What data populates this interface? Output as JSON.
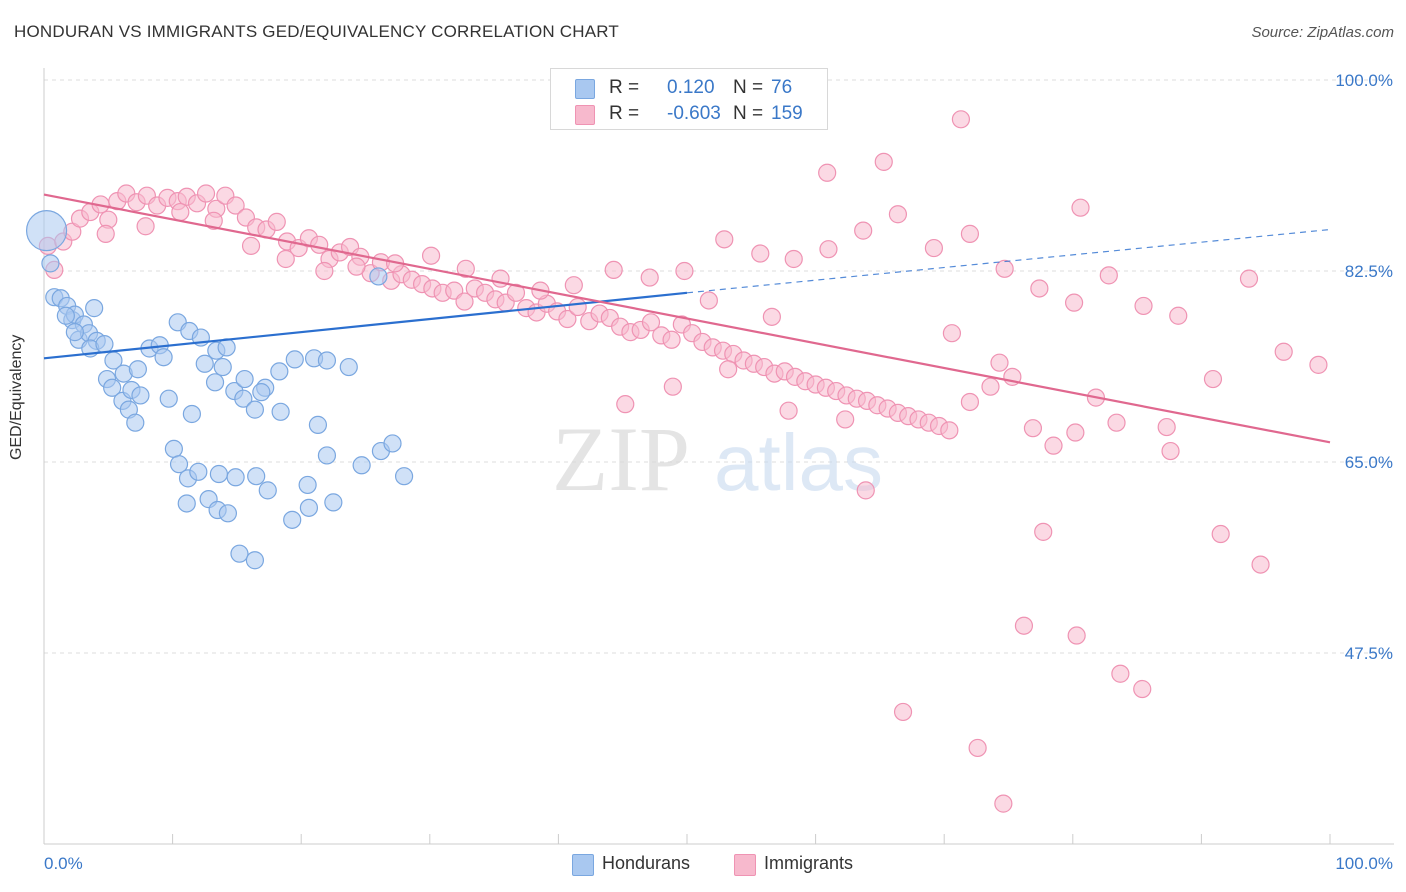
{
  "title": "HONDURAN VS IMMIGRANTS GED/EQUIVALENCY CORRELATION CHART",
  "source": "Source: ZipAtlas.com",
  "watermark": {
    "zip": "ZIP",
    "atlas": "atlas"
  },
  "legend_top": [
    {
      "r_label": "R =",
      "r_value": "0.120",
      "n_label": "N =",
      "n_value": "76"
    },
    {
      "r_label": "R =",
      "r_value": "-0.603",
      "n_label": "N =",
      "n_value": "159"
    }
  ],
  "legend_bottom": [
    {
      "label": "Hondurans"
    },
    {
      "label": "Immigrants"
    }
  ],
  "colors": {
    "hondurans_fill": "#a9c8f0",
    "hondurans_stroke": "#7aa7e0",
    "hondurans_line": "#2b6fcf",
    "immigrants_fill": "#f7b9cd",
    "immigrants_stroke": "#ef93b3",
    "immigrants_line": "#e0688f",
    "tick_label": "#3a78c8",
    "grid": "#dddddd"
  },
  "chart_data": {
    "type": "scatter",
    "title": "HONDURAN VS IMMIGRANTS GED/EQUIVALENCY CORRELATION CHART",
    "xlabel": "",
    "ylabel": "GED/Equivalency",
    "xlim": [
      0,
      100
    ],
    "ylim": [
      30,
      100
    ],
    "x_tick_labels": [
      "0.0%",
      "100.0%"
    ],
    "y_ticks": [
      47.5,
      65.0,
      82.5,
      100.0
    ],
    "y_tick_labels": [
      "47.5%",
      "65.0%",
      "82.5%",
      "100.0%"
    ],
    "grid": true,
    "legend_position": "top-center",
    "series": [
      {
        "name": "Hondurans",
        "trend": {
          "x": [
            0,
            50
          ],
          "y": [
            74.5,
            80.5
          ],
          "dashed_to": [
            100,
            86.3
          ]
        },
        "points": [
          [
            0.2,
            86.2
          ],
          [
            0.5,
            83.2
          ],
          [
            0.8,
            80.1
          ],
          [
            1.3,
            80.0
          ],
          [
            1.8,
            79.3
          ],
          [
            2.2,
            78.0
          ],
          [
            2.7,
            76.2
          ],
          [
            2.4,
            78.5
          ],
          [
            3.1,
            77.6
          ],
          [
            3.5,
            76.8
          ],
          [
            1.7,
            78.4
          ],
          [
            2.4,
            76.9
          ],
          [
            3.9,
            79.1
          ],
          [
            4.1,
            76.1
          ],
          [
            3.6,
            75.4
          ],
          [
            4.7,
            75.8
          ],
          [
            4.9,
            72.6
          ],
          [
            5.3,
            71.8
          ],
          [
            6.1,
            70.6
          ],
          [
            6.6,
            69.8
          ],
          [
            7.1,
            68.6
          ],
          [
            5.4,
            74.3
          ],
          [
            6.2,
            73.1
          ],
          [
            7.3,
            73.5
          ],
          [
            8.2,
            75.4
          ],
          [
            9.0,
            75.7
          ],
          [
            9.3,
            74.6
          ],
          [
            10.4,
            77.8
          ],
          [
            11.3,
            77.0
          ],
          [
            12.2,
            76.4
          ],
          [
            13.4,
            75.2
          ],
          [
            14.2,
            75.5
          ],
          [
            6.8,
            71.6
          ],
          [
            7.5,
            71.1
          ],
          [
            9.7,
            70.8
          ],
          [
            11.5,
            69.4
          ],
          [
            14.8,
            71.5
          ],
          [
            13.3,
            72.3
          ],
          [
            15.5,
            70.8
          ],
          [
            16.4,
            69.8
          ],
          [
            17.2,
            71.8
          ],
          [
            18.4,
            69.6
          ],
          [
            19.5,
            74.4
          ],
          [
            21.0,
            74.5
          ],
          [
            22.0,
            74.3
          ],
          [
            23.7,
            73.7
          ],
          [
            12.5,
            74.0
          ],
          [
            13.9,
            73.7
          ],
          [
            15.6,
            72.6
          ],
          [
            16.9,
            71.4
          ],
          [
            18.3,
            73.3
          ],
          [
            10.1,
            66.2
          ],
          [
            10.5,
            64.8
          ],
          [
            11.2,
            63.5
          ],
          [
            12.0,
            64.1
          ],
          [
            13.6,
            63.9
          ],
          [
            14.9,
            63.6
          ],
          [
            16.5,
            63.7
          ],
          [
            17.4,
            62.4
          ],
          [
            20.5,
            62.9
          ],
          [
            21.3,
            68.4
          ],
          [
            22.0,
            65.6
          ],
          [
            24.7,
            64.7
          ],
          [
            26.2,
            66.0
          ],
          [
            27.1,
            66.7
          ],
          [
            28.0,
            63.7
          ],
          [
            11.1,
            61.2
          ],
          [
            12.8,
            61.6
          ],
          [
            13.5,
            60.6
          ],
          [
            14.3,
            60.3
          ],
          [
            15.2,
            56.6
          ],
          [
            19.3,
            59.7
          ],
          [
            20.6,
            60.8
          ],
          [
            22.5,
            61.3
          ],
          [
            16.4,
            56.0
          ],
          [
            26.0,
            82.0
          ]
        ]
      },
      {
        "name": "Immigrants",
        "trend": {
          "x": [
            0,
            100
          ],
          "y": [
            89.5,
            66.8
          ]
        },
        "points": [
          [
            0.3,
            84.8
          ],
          [
            0.8,
            82.6
          ],
          [
            1.5,
            85.2
          ],
          [
            2.2,
            86.1
          ],
          [
            2.8,
            87.3
          ],
          [
            3.6,
            87.9
          ],
          [
            4.4,
            88.6
          ],
          [
            5.0,
            87.2
          ],
          [
            5.7,
            88.9
          ],
          [
            6.4,
            89.6
          ],
          [
            7.2,
            88.8
          ],
          [
            8.0,
            89.4
          ],
          [
            8.8,
            88.5
          ],
          [
            9.6,
            89.2
          ],
          [
            10.4,
            88.9
          ],
          [
            11.1,
            89.3
          ],
          [
            11.9,
            88.7
          ],
          [
            12.6,
            89.6
          ],
          [
            13.4,
            88.2
          ],
          [
            14.1,
            89.4
          ],
          [
            14.9,
            88.5
          ],
          [
            15.7,
            87.4
          ],
          [
            16.5,
            86.5
          ],
          [
            17.3,
            86.3
          ],
          [
            18.1,
            87.0
          ],
          [
            18.9,
            85.2
          ],
          [
            19.8,
            84.6
          ],
          [
            20.6,
            85.5
          ],
          [
            21.4,
            84.9
          ],
          [
            22.2,
            83.6
          ],
          [
            23.0,
            84.2
          ],
          [
            23.8,
            84.7
          ],
          [
            24.6,
            83.8
          ],
          [
            25.4,
            82.3
          ],
          [
            26.2,
            83.3
          ],
          [
            27.0,
            81.6
          ],
          [
            27.8,
            82.2
          ],
          [
            28.6,
            81.7
          ],
          [
            29.4,
            81.3
          ],
          [
            30.2,
            80.9
          ],
          [
            31.0,
            80.5
          ],
          [
            31.9,
            80.7
          ],
          [
            32.7,
            79.7
          ],
          [
            33.5,
            80.9
          ],
          [
            34.3,
            80.5
          ],
          [
            35.1,
            79.9
          ],
          [
            35.9,
            79.6
          ],
          [
            36.7,
            80.5
          ],
          [
            37.5,
            79.1
          ],
          [
            38.3,
            78.7
          ],
          [
            39.1,
            79.5
          ],
          [
            39.9,
            78.8
          ],
          [
            40.7,
            78.1
          ],
          [
            41.5,
            79.2
          ],
          [
            42.4,
            77.9
          ],
          [
            43.2,
            78.6
          ],
          [
            44.0,
            78.2
          ],
          [
            44.8,
            77.4
          ],
          [
            45.6,
            76.9
          ],
          [
            46.4,
            77.1
          ],
          [
            47.2,
            77.8
          ],
          [
            48.0,
            76.6
          ],
          [
            48.8,
            76.2
          ],
          [
            49.6,
            77.6
          ],
          [
            50.4,
            76.8
          ],
          [
            51.2,
            76.0
          ],
          [
            52.0,
            75.5
          ],
          [
            52.8,
            75.2
          ],
          [
            53.6,
            74.9
          ],
          [
            54.4,
            74.3
          ],
          [
            55.2,
            74.0
          ],
          [
            56.0,
            73.7
          ],
          [
            56.8,
            73.1
          ],
          [
            57.6,
            73.3
          ],
          [
            58.4,
            72.8
          ],
          [
            59.2,
            72.4
          ],
          [
            60.0,
            72.1
          ],
          [
            60.8,
            71.8
          ],
          [
            61.6,
            71.5
          ],
          [
            62.4,
            71.1
          ],
          [
            63.2,
            70.8
          ],
          [
            64.0,
            70.6
          ],
          [
            64.8,
            70.2
          ],
          [
            65.6,
            69.9
          ],
          [
            66.4,
            69.5
          ],
          [
            67.2,
            69.2
          ],
          [
            68.0,
            68.9
          ],
          [
            68.8,
            68.6
          ],
          [
            69.6,
            68.3
          ],
          [
            70.4,
            67.9
          ],
          [
            72.0,
            70.5
          ],
          [
            73.6,
            71.9
          ],
          [
            75.3,
            72.8
          ],
          [
            76.9,
            68.1
          ],
          [
            78.5,
            66.5
          ],
          [
            80.2,
            67.7
          ],
          [
            81.8,
            70.9
          ],
          [
            83.4,
            68.6
          ],
          [
            4.8,
            85.9
          ],
          [
            7.9,
            86.6
          ],
          [
            10.6,
            87.9
          ],
          [
            13.2,
            87.1
          ],
          [
            16.1,
            84.8
          ],
          [
            18.8,
            83.6
          ],
          [
            21.8,
            82.5
          ],
          [
            24.3,
            82.9
          ],
          [
            27.3,
            83.2
          ],
          [
            30.1,
            83.9
          ],
          [
            32.8,
            82.7
          ],
          [
            35.5,
            81.8
          ],
          [
            38.6,
            80.7
          ],
          [
            41.2,
            81.2
          ],
          [
            44.3,
            82.6
          ],
          [
            47.1,
            81.9
          ],
          [
            49.8,
            82.5
          ],
          [
            52.9,
            85.4
          ],
          [
            55.7,
            84.1
          ],
          [
            58.3,
            83.6
          ],
          [
            61.0,
            84.5
          ],
          [
            63.7,
            86.2
          ],
          [
            66.4,
            87.7
          ],
          [
            69.2,
            84.6
          ],
          [
            72.0,
            85.9
          ],
          [
            74.7,
            82.7
          ],
          [
            77.4,
            80.9
          ],
          [
            80.1,
            79.6
          ],
          [
            82.8,
            82.1
          ],
          [
            85.5,
            79.3
          ],
          [
            88.2,
            78.4
          ],
          [
            90.9,
            72.6
          ],
          [
            93.7,
            81.8
          ],
          [
            96.4,
            75.1
          ],
          [
            99.1,
            73.9
          ],
          [
            60.9,
            91.5
          ],
          [
            65.3,
            92.5
          ],
          [
            71.3,
            96.4
          ],
          [
            80.6,
            88.3
          ],
          [
            63.9,
            62.4
          ],
          [
            77.7,
            58.6
          ],
          [
            76.2,
            50.0
          ],
          [
            80.3,
            49.1
          ],
          [
            91.5,
            58.4
          ],
          [
            94.6,
            55.6
          ],
          [
            74.6,
            33.7
          ],
          [
            66.8,
            42.1
          ],
          [
            72.6,
            38.8
          ],
          [
            83.7,
            45.6
          ],
          [
            85.4,
            44.2
          ],
          [
            87.6,
            66.0
          ],
          [
            70.6,
            76.8
          ],
          [
            74.3,
            74.1
          ],
          [
            87.3,
            68.2
          ],
          [
            57.9,
            69.7
          ],
          [
            53.2,
            73.5
          ],
          [
            62.3,
            68.9
          ],
          [
            56.6,
            78.3
          ],
          [
            45.2,
            70.3
          ],
          [
            48.9,
            71.9
          ],
          [
            51.7,
            79.8
          ]
        ]
      }
    ]
  }
}
